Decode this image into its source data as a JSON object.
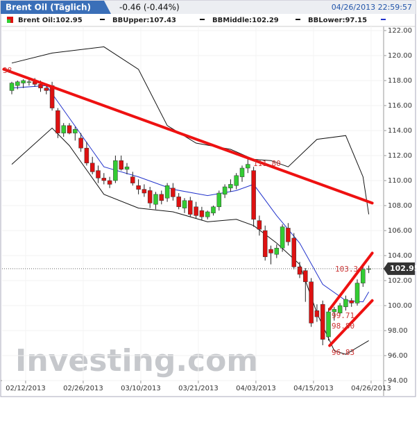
{
  "header": {
    "title": "Brent Oil (Täglich)",
    "change": "-0.46 (-0.44%)",
    "timestamp": "04/26/2013 22:59:57"
  },
  "chart_data": {
    "type": "candlestick",
    "legend": [
      "Brent Oil:102.95",
      "BBUpper:107.43",
      "BBMiddle:102.29",
      "BBLower:97.15"
    ],
    "watermark": "Investing.com",
    "up_color": "#33cc33",
    "down_color": "#dd1111",
    "open": [
      117.2,
      117.6,
      117.8,
      117.9,
      117.9,
      117.7,
      117.4,
      117.6,
      115.6,
      113.8,
      114.4,
      113.8,
      113.4,
      112.6,
      111.4,
      110.8,
      110.2,
      110.0,
      110.0,
      111.6,
      110.9,
      110.3,
      109.6,
      109.3,
      109.2,
      108.1,
      108.9,
      108.6,
      109.4,
      108.7,
      107.8,
      108.4,
      107.9,
      107.6,
      107.1,
      107.4,
      107.9,
      108.9,
      109.4,
      109.6,
      110.3,
      111.0,
      110.8,
      106.8,
      106.0,
      104.5,
      104.1,
      104.6,
      106.2,
      105.4,
      103.1,
      102.8,
      101.9,
      99.6,
      100.1,
      97.5,
      99.5,
      99.4,
      99.9,
      100.4,
      100.2,
      101.8,
      102.9
    ],
    "high": [
      117.9,
      118.0,
      118.1,
      118.2,
      118.2,
      118.0,
      117.7,
      117.9,
      115.8,
      114.6,
      114.6,
      114.3,
      113.8,
      113.1,
      111.9,
      111.2,
      110.6,
      110.3,
      112.0,
      112.0,
      111.4,
      110.7,
      110.1,
      109.7,
      109.5,
      109.1,
      109.2,
      109.8,
      109.8,
      109.0,
      108.6,
      108.7,
      108.3,
      107.9,
      107.6,
      108.0,
      109.2,
      109.7,
      110.1,
      110.6,
      111.2,
      111.8,
      111.1,
      107.2,
      106.4,
      104.8,
      104.9,
      106.5,
      106.6,
      105.8,
      103.5,
      103.0,
      102.2,
      100.1,
      100.4,
      99.8,
      99.9,
      100.2,
      100.8,
      100.6,
      102.1,
      103.2,
      103.2
    ],
    "low": [
      116.9,
      117.3,
      117.4,
      117.6,
      117.5,
      117.1,
      116.9,
      115.6,
      113.4,
      113.5,
      113.7,
      113.2,
      112.3,
      111.2,
      110.5,
      109.8,
      109.7,
      109.4,
      109.8,
      110.8,
      110.5,
      109.6,
      108.9,
      108.7,
      107.8,
      107.7,
      108.1,
      108.3,
      108.4,
      107.7,
      107.4,
      107.1,
      107.0,
      106.8,
      106.9,
      107.2,
      107.6,
      108.6,
      109.1,
      109.3,
      109.9,
      110.6,
      106.3,
      105.6,
      103.6,
      103.3,
      103.8,
      104.3,
      104.8,
      102.9,
      102.2,
      100.3,
      98.3,
      98.7,
      96.83,
      97.2,
      98.8,
      99.2,
      99.6,
      99.9,
      100.0,
      101.5,
      102.6
    ],
    "close": [
      117.8,
      117.9,
      118.0,
      117.9,
      117.7,
      117.4,
      117.2,
      115.8,
      113.8,
      114.4,
      113.8,
      114.1,
      112.6,
      111.4,
      110.7,
      110.2,
      110.0,
      109.7,
      111.6,
      110.9,
      111.1,
      109.8,
      109.3,
      109.0,
      108.2,
      108.9,
      108.4,
      109.6,
      108.7,
      107.9,
      108.4,
      107.3,
      107.2,
      107.1,
      107.5,
      107.9,
      109.0,
      109.5,
      109.7,
      110.4,
      111.0,
      111.3,
      106.9,
      106.1,
      103.9,
      104.2,
      104.6,
      106.3,
      105.1,
      103.1,
      102.5,
      101.9,
      98.6,
      99.1,
      97.3,
      99.5,
      99.7,
      100.0,
      100.5,
      100.2,
      101.8,
      102.9,
      102.95
    ],
    "bands": [
      {
        "color": "#111111",
        "x": [
          0,
          7,
          16,
          22,
          27,
          32,
          38,
          42,
          45,
          48,
          53,
          58,
          61,
          62
        ],
        "values": [
          119.4,
          120.2,
          120.7,
          118.9,
          114.4,
          113,
          112.5,
          111.7,
          111.6,
          111.1,
          113.3,
          113.6,
          110.3,
          107.3
        ]
      },
      {
        "color": "#2233cc",
        "x": [
          0,
          6,
          10,
          16,
          22,
          28,
          34,
          39,
          42,
          46,
          50,
          54,
          58,
          61,
          62
        ],
        "values": [
          117.4,
          117.6,
          115,
          111.1,
          110.3,
          109.3,
          108.8,
          109.2,
          109.7,
          107.2,
          105,
          101.7,
          100.4,
          100.3,
          101.1
        ]
      },
      {
        "color": "#111111",
        "x": [
          0,
          7,
          10,
          16,
          22,
          28,
          34,
          39,
          42,
          46,
          50,
          53,
          56,
          58,
          62
        ],
        "values": [
          111.3,
          114.2,
          112.8,
          108.9,
          107.8,
          107.5,
          106.7,
          106.9,
          106.4,
          105,
          103.3,
          99.4,
          96.4,
          96.1,
          97.2
        ]
      }
    ],
    "trendlines": [
      {
        "color": "#ee1111",
        "x": [
          -1.4,
          62.6
        ],
        "values": [
          118.9,
          108.2
        ]
      },
      {
        "color": "#ee1111",
        "x": [
          55.2,
          62.6
        ],
        "values": [
          96.8,
          100.4
        ]
      },
      {
        "color": "#ee1111",
        "x": [
          55.2,
          62.6
        ],
        "values": [
          99.7,
          104.2
        ]
      }
    ],
    "annotations": [
      "38",
      "111.80",
      "103.3",
      "99.71",
      "98.80",
      "96.83"
    ],
    "last_price": 102.95,
    "ylim": [
      94,
      122
    ],
    "yticks": [
      {
        "value": 94,
        "label": "94.00"
      },
      {
        "value": 96,
        "label": "96.00"
      },
      {
        "value": 98,
        "label": "98.00"
      },
      {
        "value": 100,
        "label": "100.00"
      },
      {
        "value": 102,
        "label": "102.00"
      },
      {
        "value": 104,
        "label": "104.00"
      },
      {
        "value": 106,
        "label": "106.00"
      },
      {
        "value": 108,
        "label": "108.00"
      },
      {
        "value": 110,
        "label": "110.00"
      },
      {
        "value": 112,
        "label": "112.00"
      },
      {
        "value": 114,
        "label": "114.00"
      },
      {
        "value": 116,
        "label": "116.00"
      },
      {
        "value": 118,
        "label": "118.00"
      },
      {
        "value": 120,
        "label": "120.00"
      },
      {
        "value": 122,
        "label": "122.00"
      }
    ],
    "xticks": [
      {
        "value": 2.4,
        "label": "02/12/2013"
      },
      {
        "value": 12.4,
        "label": "02/26/2013"
      },
      {
        "value": 22.4,
        "label": "03/10/2013"
      },
      {
        "value": 32.4,
        "label": "03/21/2013"
      },
      {
        "value": 42.4,
        "label": "04/03/2013"
      },
      {
        "value": 52.4,
        "label": "04/15/2013"
      },
      {
        "value": 62.4,
        "label": "04/26/2013"
      }
    ],
    "grid": true
  }
}
